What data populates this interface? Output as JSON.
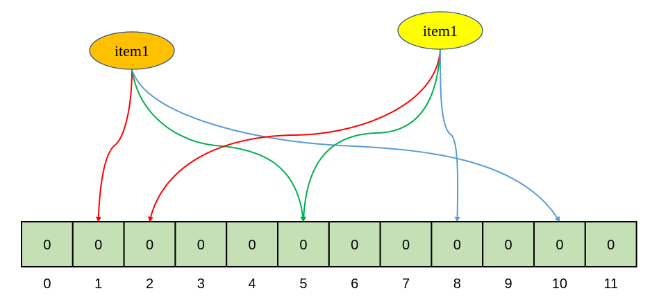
{
  "nodes": [
    {
      "label": "item1",
      "fill": "#ffc000"
    },
    {
      "label": "item1",
      "fill": "#ffff00"
    }
  ],
  "array": {
    "values": [
      "0",
      "0",
      "0",
      "0",
      "0",
      "0",
      "0",
      "0",
      "0",
      "0",
      "0",
      "0"
    ],
    "indices": [
      "0",
      "1",
      "2",
      "3",
      "4",
      "5",
      "6",
      "7",
      "8",
      "9",
      "10",
      "11"
    ],
    "cell_fill": "#c5e0b4",
    "border": "#000000"
  },
  "edges": [
    {
      "from": 0,
      "to_index": 1,
      "color": "#ff0000"
    },
    {
      "from": 0,
      "to_index": 5,
      "color": "#00b050"
    },
    {
      "from": 0,
      "to_index": 10,
      "color": "#5b9bd5"
    },
    {
      "from": 1,
      "to_index": 2,
      "color": "#ff0000"
    },
    {
      "from": 1,
      "to_index": 5,
      "color": "#00b050"
    },
    {
      "from": 1,
      "to_index": 8,
      "color": "#5b9bd5"
    }
  ]
}
